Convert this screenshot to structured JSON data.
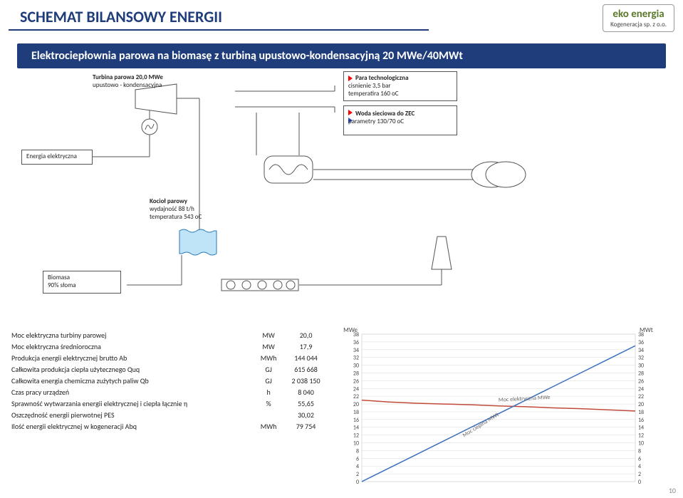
{
  "header": {
    "title": "SCHEMAT BILANSOWY ENERGII",
    "subtitle": "Elektrociepłownia parowa na biomasę z turbiną upustowo-kondensacyjną 20 MWe/40MWt",
    "logo_main": "eko energia",
    "logo_sub": "Kogeneracja sp. z o.o."
  },
  "diagram": {
    "turbine_title": "Turbina parowa  20,0 MWe",
    "turbine_sub": "upustowo - kondensacyjna",
    "steam_title": "Para technologiczna",
    "steam_l1": "cisnienie 3,5 bar",
    "steam_l2": "temperatira 160 oC",
    "water_title": "Woda sieciowa do ZEC",
    "water_l1": "parametry 130/70 oC",
    "energy": "Energia elektryczna",
    "boiler_title": "Kocioł parowy",
    "boiler_l1": "wydajność    88 t/h",
    "boiler_l2": "temperatura 543 oC",
    "biomass_title": "Biomasa",
    "biomass_sub": "90% słoma"
  },
  "table": {
    "rows": [
      {
        "label": "Moc elektryczna turbiny parowej",
        "unit": "MW",
        "value": "20,0"
      },
      {
        "label": "Moc elektryczna średnioroczna",
        "unit": "MW",
        "value": "17,9"
      },
      {
        "label": "Produkcja energii elektrycznej brutto Ab",
        "unit": "MWh",
        "value": "144 044"
      },
      {
        "label": "Całkowita produkcja ciepła użytecznego Quq",
        "unit": "GJ",
        "value": "615 668"
      },
      {
        "label": "Całkowita energia chemiczna zużytych paliw Qb",
        "unit": "GJ",
        "value": "2 038 150"
      },
      {
        "label": "Czas pracy urządzeń",
        "unit": "h",
        "value": "8 040"
      },
      {
        "label": "Sprawność wytwarzania energii elektrycznej i ciepła łącznie η",
        "unit": "%",
        "value": "55,65"
      },
      {
        "label": "Oszczędność energii pierwotnej PES",
        "unit": "",
        "value": "30,02"
      },
      {
        "label": "Ilość energii elektrycznej w kogeneracji Abq",
        "unit": "MWh",
        "value": "79 754"
      }
    ]
  },
  "chart": {
    "left_title": "MWe",
    "right_title": "MWt",
    "y_ticks": [
      0,
      2,
      4,
      6,
      8,
      10,
      12,
      14,
      16,
      18,
      20,
      22,
      24,
      26,
      28,
      30,
      32,
      34,
      36,
      38
    ],
    "y_min": 0,
    "y_max": 38,
    "line1_label": "Moc elektryczna MWe",
    "line2_label": "Moc cieplna MWt",
    "line1_color": "#c24a3a",
    "line2_color": "#3a6fc2",
    "line_width": 1.5,
    "grid_color": "#d9d9d9",
    "bg_color": "#ffffff",
    "line1_points": [
      [
        0,
        21
      ],
      [
        10,
        20.5
      ],
      [
        20,
        20.2
      ],
      [
        30,
        20
      ],
      [
        40,
        19.8
      ],
      [
        50,
        19.5
      ],
      [
        60,
        19.3
      ],
      [
        70,
        19.0
      ],
      [
        80,
        18.8
      ],
      [
        90,
        18.5
      ],
      [
        100,
        18.2
      ]
    ],
    "line2_points": [
      [
        0,
        0
      ],
      [
        10,
        3.5
      ],
      [
        20,
        7
      ],
      [
        30,
        10.5
      ],
      [
        40,
        14
      ],
      [
        50,
        17.5
      ],
      [
        60,
        21
      ],
      [
        70,
        24.5
      ],
      [
        80,
        28
      ],
      [
        90,
        31.5
      ],
      [
        100,
        35
      ]
    ]
  },
  "page_number": "10"
}
